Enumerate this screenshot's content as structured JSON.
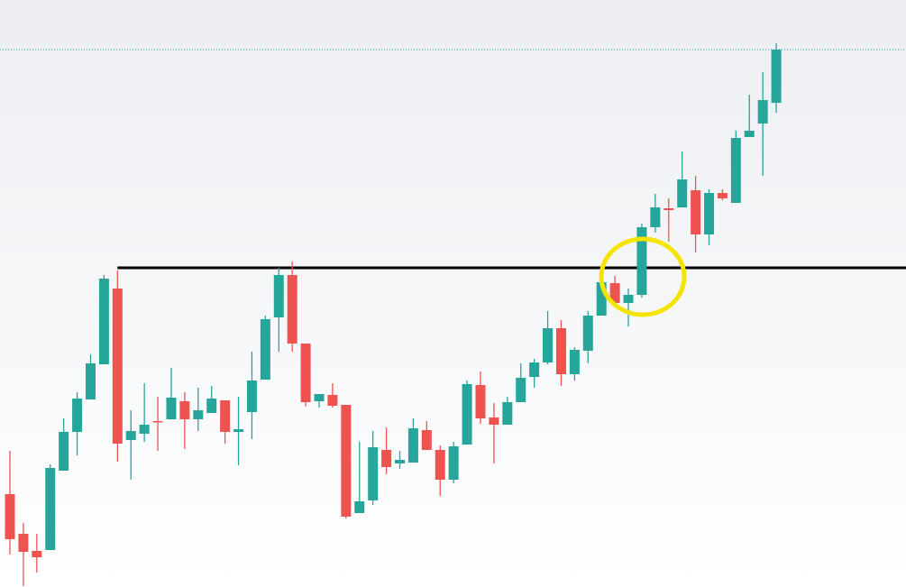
{
  "chart_data": {
    "type": "candlestick",
    "up_color": "#26a69a",
    "down_color": "#ef5350",
    "xlim": [
      -0.738,
      66.65
    ],
    "ylim": [
      0,
      651
    ],
    "open": [
      103,
      59,
      40,
      41,
      129,
      172,
      208,
      247,
      331,
      163,
      170,
      184,
      186,
      206,
      186,
      193,
      207,
      172,
      194,
      230,
      299,
      346,
      270,
      206,
      213,
      202,
      82,
      96,
      152,
      137,
      138,
      174,
      152,
      119,
      158,
      224,
      188,
      180,
      205,
      233,
      249,
      287,
      236,
      262,
      301,
      337,
      315,
      324,
      399,
      420,
      421,
      440,
      391,
      437,
      426,
      499,
      514,
      537
    ],
    "high": [
      151,
      71,
      59,
      136,
      187,
      216,
      258,
      346,
      351,
      196,
      226,
      211,
      243,
      216,
      221,
      223,
      207,
      211,
      261,
      301,
      354,
      361,
      270,
      214,
      226,
      202,
      161,
      173,
      177,
      151,
      187,
      184,
      157,
      161,
      229,
      239,
      204,
      211,
      248,
      253,
      306,
      296,
      266,
      306,
      345,
      345,
      331,
      403,
      436,
      431,
      483,
      456,
      441,
      441,
      506,
      546,
      571,
      603
    ],
    "low": [
      36,
      1,
      16,
      41,
      129,
      146,
      208,
      247,
      139,
      119,
      161,
      151,
      186,
      153,
      173,
      193,
      159,
      135,
      164,
      230,
      261,
      261,
      200,
      199,
      199,
      76,
      82,
      91,
      125,
      131,
      138,
      152,
      101,
      115,
      158,
      181,
      137,
      180,
      205,
      221,
      247,
      223,
      229,
      248,
      301,
      311,
      289,
      321,
      393,
      383,
      421,
      371,
      379,
      429,
      426,
      499,
      456,
      526
    ],
    "close": [
      53,
      39,
      33,
      132,
      172,
      209,
      248,
      342,
      159,
      173,
      180,
      183,
      210,
      186,
      196,
      209,
      172,
      175,
      229,
      297,
      346,
      270,
      205,
      214,
      201,
      78,
      95,
      155,
      133,
      141,
      176,
      152,
      119,
      156,
      225,
      187,
      180,
      205,
      232,
      249,
      287,
      236,
      263,
      301,
      338,
      315,
      324,
      399,
      421,
      418,
      452,
      391,
      437,
      431,
      498,
      506,
      540,
      596
    ],
    "resistance": {
      "value": 354,
      "x_start": 8
    },
    "last_price": 596
  }
}
